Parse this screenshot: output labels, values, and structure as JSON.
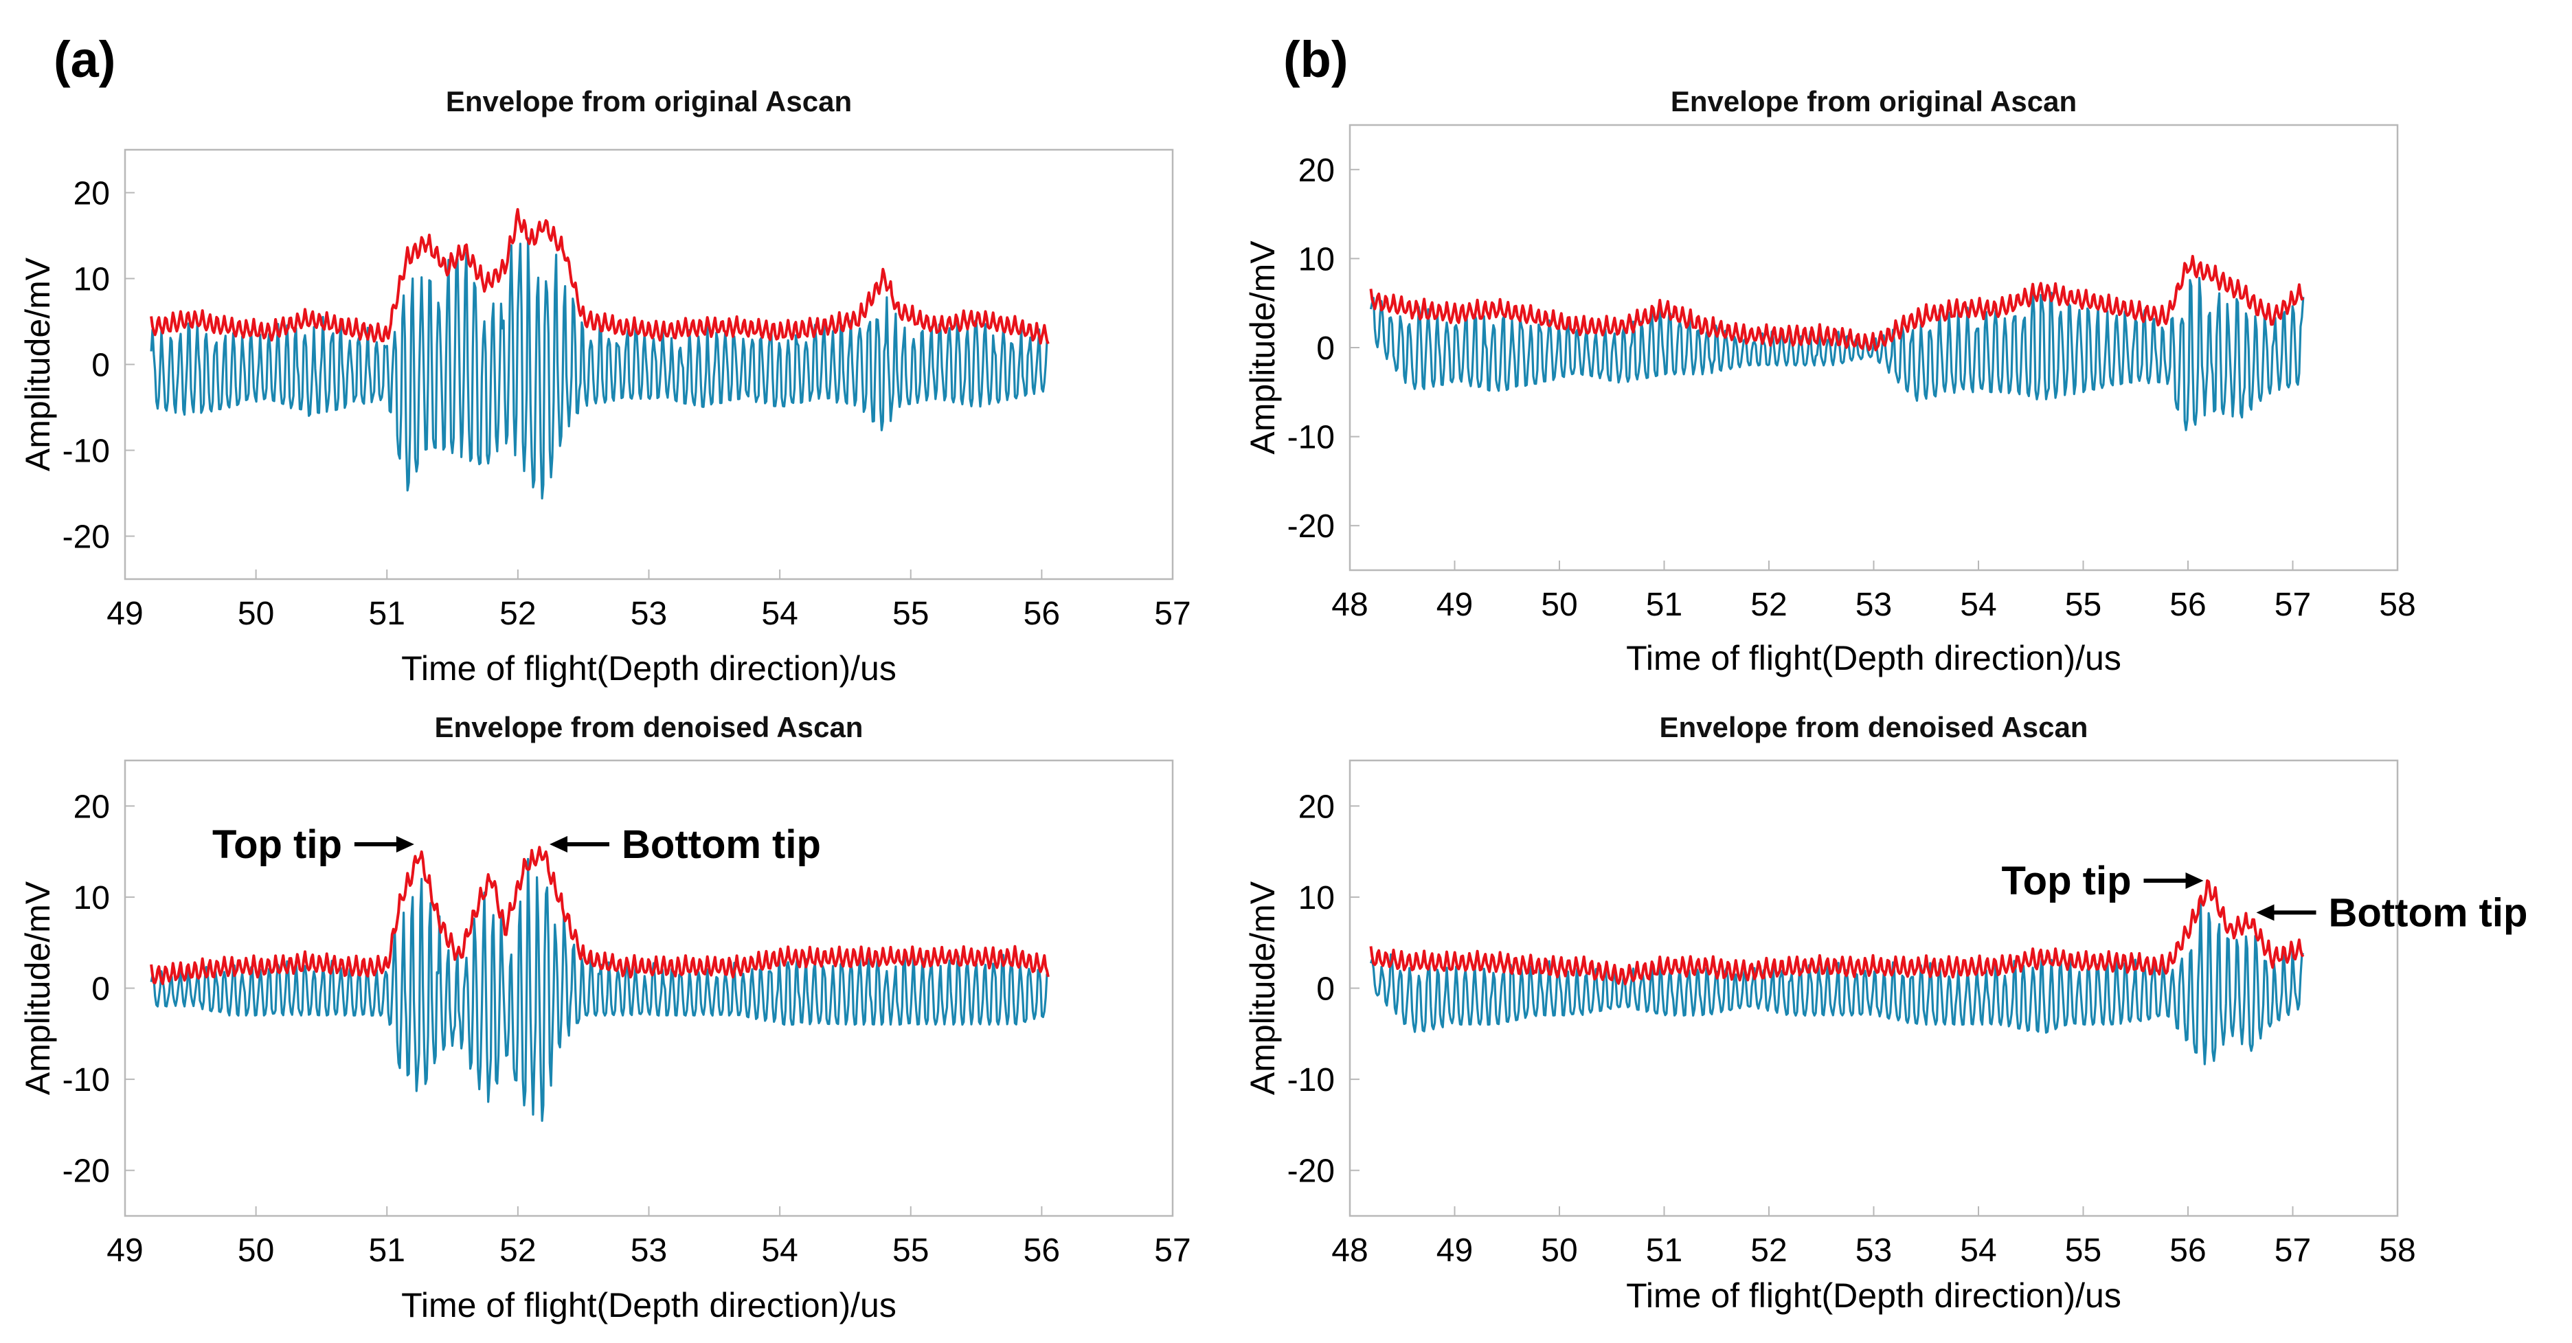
{
  "figure": {
    "panel_a_label": "(a)",
    "panel_b_label": "(b)"
  },
  "colors": {
    "envelope": "#e8121a",
    "ascan": "#1a86b0",
    "frame": "#b8b8b8",
    "annotation": "#000000"
  },
  "chart_data": [
    {
      "id": "a-original",
      "type": "line",
      "title": "Envelope from original Ascan",
      "xlabel": "Time of flight(Depth direction)/us",
      "ylabel": "Amplitude/mV",
      "xlim": [
        49,
        57
      ],
      "ylim": [
        -25,
        25
      ],
      "xticks": [
        49,
        50,
        51,
        52,
        53,
        54,
        55,
        56,
        57
      ],
      "yticks": [
        -20,
        -10,
        0,
        10,
        20
      ],
      "x_range_data": [
        49.2,
        56.05
      ],
      "series": [
        {
          "name": "Envelope",
          "role": "envelope",
          "x": [
            49.2,
            49.5,
            49.8,
            50.1,
            50.4,
            50.7,
            51.0,
            51.15,
            51.3,
            51.45,
            51.6,
            51.75,
            51.9,
            52.0,
            52.1,
            52.2,
            52.35,
            52.5,
            52.8,
            53.1,
            53.4,
            53.7,
            54.0,
            54.3,
            54.6,
            54.8,
            54.9,
            55.2,
            55.5,
            55.8,
            56.05
          ],
          "values": [
            5,
            6,
            5,
            4.5,
            6,
            5,
            4,
            13,
            15,
            12,
            14,
            10,
            12,
            18,
            15,
            17,
            14,
            6,
            5,
            4.5,
            5,
            5,
            4.5,
            5,
            6,
            11,
            7,
            5,
            6,
            5,
            4
          ]
        },
        {
          "name": "A-scan",
          "role": "signal",
          "x": [
            49.2,
            49.5,
            49.8,
            50.1,
            50.4,
            50.7,
            51.0,
            51.15,
            51.3,
            51.45,
            51.6,
            51.75,
            51.9,
            52.0,
            52.1,
            52.2,
            52.35,
            52.5,
            52.8,
            53.1,
            53.4,
            53.7,
            54.0,
            54.3,
            54.6,
            54.8,
            54.9,
            55.2,
            55.5,
            55.8,
            56.05
          ],
          "values": [
            -5,
            -6,
            -5,
            -4,
            -6,
            -5,
            -4,
            -15,
            -10,
            -10,
            -11,
            -12,
            -9,
            -11,
            -14,
            -16,
            -8,
            -5,
            -4,
            -4,
            -5,
            -4,
            -5,
            -4,
            -5,
            -8,
            -5,
            -4,
            -5,
            -4,
            -3
          ]
        }
      ],
      "annotations": []
    },
    {
      "id": "b-original",
      "type": "line",
      "title": "Envelope from original Ascan",
      "xlabel": "Time of flight(Depth direction)/us",
      "ylabel": "Amplitude/mV",
      "xlim": [
        48,
        58
      ],
      "ylim": [
        -25,
        25
      ],
      "xticks": [
        48,
        49,
        50,
        51,
        52,
        53,
        54,
        55,
        56,
        57,
        58
      ],
      "yticks": [
        -20,
        -10,
        0,
        10,
        20
      ],
      "x_range_data": [
        48.2,
        57.1
      ],
      "series": [
        {
          "name": "Envelope",
          "role": "envelope",
          "x": [
            48.2,
            48.6,
            49.0,
            49.4,
            49.8,
            50.2,
            50.6,
            51.0,
            51.4,
            51.8,
            52.2,
            52.6,
            53.0,
            53.4,
            53.8,
            54.2,
            54.6,
            55.0,
            55.4,
            55.8,
            56.0,
            56.2,
            56.5,
            56.8,
            57.1
          ],
          "values": [
            6,
            5,
            4.5,
            5,
            4,
            3,
            3,
            5,
            3,
            2,
            2,
            2,
            1,
            4,
            5,
            5,
            7,
            6,
            5,
            4,
            10,
            9,
            7,
            4,
            7
          ]
        },
        {
          "name": "A-scan",
          "role": "signal",
          "x": [
            48.2,
            48.6,
            49.0,
            49.4,
            49.8,
            50.2,
            50.6,
            51.0,
            51.4,
            51.8,
            52.2,
            52.6,
            53.0,
            53.4,
            53.8,
            54.2,
            54.6,
            55.0,
            55.4,
            55.8,
            56.0,
            56.2,
            56.5,
            56.8,
            57.1
          ],
          "values": [
            1,
            -5,
            -4,
            -5,
            -4,
            -3,
            -4,
            -3,
            -3,
            -2,
            -2,
            -2,
            -1,
            -6,
            -5,
            -5,
            -6,
            -5,
            -4,
            -4,
            -10,
            -7,
            -8,
            -5,
            -4
          ]
        }
      ],
      "annotations": []
    },
    {
      "id": "a-denoised",
      "type": "line",
      "title": "Envelope from denoised Ascan",
      "xlabel": "Time of flight(Depth direction)/us",
      "ylabel": "Amplitude/mV",
      "xlim": [
        49,
        57
      ],
      "ylim": [
        -25,
        25
      ],
      "xticks": [
        49,
        50,
        51,
        52,
        53,
        54,
        55,
        56,
        57
      ],
      "yticks": [
        -20,
        -10,
        0,
        10,
        20
      ],
      "x_range_data": [
        49.2,
        56.05
      ],
      "series": [
        {
          "name": "Envelope",
          "role": "envelope",
          "x": [
            49.2,
            49.5,
            49.8,
            50.1,
            50.4,
            50.7,
            51.0,
            51.1,
            51.25,
            51.4,
            51.55,
            51.7,
            51.8,
            51.9,
            52.05,
            52.2,
            52.3,
            52.5,
            52.8,
            53.1,
            53.4,
            53.7,
            54.0,
            54.3,
            54.6,
            54.9,
            55.2,
            55.5,
            55.8,
            56.05
          ],
          "values": [
            2,
            2.5,
            3,
            3,
            3.5,
            3,
            3,
            10,
            15.5,
            8,
            4,
            10,
            13,
            7,
            14,
            15.5,
            11,
            4,
            3,
            3,
            3,
            3,
            4,
            4,
            4,
            4,
            4,
            4,
            4,
            3
          ]
        },
        {
          "name": "A-scan",
          "role": "signal",
          "x": [
            49.2,
            49.5,
            49.8,
            50.1,
            50.4,
            50.7,
            51.0,
            51.1,
            51.25,
            51.4,
            51.55,
            51.7,
            51.8,
            51.9,
            52.05,
            52.2,
            52.3,
            52.5,
            52.8,
            53.1,
            53.4,
            53.7,
            54.0,
            54.3,
            54.6,
            54.9,
            55.2,
            55.5,
            55.8,
            56.05
          ],
          "values": [
            -2,
            -2,
            -3,
            -3,
            -3,
            -3,
            -3,
            -9,
            -12,
            -7,
            -6,
            -11,
            -13,
            -7,
            -13,
            -15,
            -7,
            -3,
            -3,
            -3,
            -3,
            -3,
            -4,
            -4,
            -4,
            -4,
            -4,
            -4,
            -4,
            -3
          ]
        }
      ],
      "annotations": [
        {
          "text": "Top tip",
          "at_x": 51.25,
          "at_y": 15.5,
          "side": "left"
        },
        {
          "text": "Bottom tip",
          "at_x": 52.2,
          "at_y": 15.5,
          "side": "right"
        }
      ]
    },
    {
      "id": "b-denoised",
      "type": "line",
      "title": "Envelope from denoised Ascan",
      "xlabel": "Time of flight(Depth direction)/us",
      "ylabel": "Amplitude/mV",
      "xlim": [
        48,
        58
      ],
      "ylim": [
        -25,
        25
      ],
      "xticks": [
        48,
        49,
        50,
        51,
        52,
        53,
        54,
        55,
        56,
        57,
        58
      ],
      "yticks": [
        -20,
        -10,
        0,
        10,
        20
      ],
      "x_range_data": [
        48.2,
        57.1
      ],
      "series": [
        {
          "name": "Envelope",
          "role": "envelope",
          "x": [
            48.2,
            48.6,
            49.0,
            49.4,
            49.8,
            50.2,
            50.6,
            51.0,
            51.4,
            51.8,
            52.2,
            52.6,
            53.0,
            53.4,
            53.8,
            54.2,
            54.6,
            55.0,
            55.4,
            55.8,
            56.0,
            56.2,
            56.4,
            56.6,
            56.8,
            57.1
          ],
          "values": [
            4,
            3.5,
            3.5,
            3.5,
            3,
            3,
            2,
            3,
            3,
            2.5,
            3,
            3,
            3,
            3,
            3,
            3,
            4,
            3.5,
            3.5,
            3,
            7,
            12,
            7,
            8,
            4,
            5
          ]
        },
        {
          "name": "A-scan",
          "role": "signal",
          "x": [
            48.2,
            48.6,
            49.0,
            49.4,
            49.8,
            50.2,
            50.6,
            51.0,
            51.4,
            51.8,
            52.2,
            52.6,
            53.0,
            53.4,
            53.8,
            54.2,
            54.6,
            55.0,
            55.4,
            55.8,
            56.0,
            56.2,
            56.4,
            56.6,
            56.8,
            57.1
          ],
          "values": [
            0,
            -5,
            -4,
            -4,
            -3,
            -3,
            -2,
            -3,
            -3,
            -2,
            -3,
            -3,
            -3,
            -4,
            -4,
            -4,
            -5,
            -4,
            -4,
            -3,
            -6,
            -9,
            -5,
            -7,
            -4,
            -2
          ]
        }
      ],
      "annotations": [
        {
          "text": "Top tip",
          "at_x": 56.2,
          "at_y": 11.5,
          "side": "left"
        },
        {
          "text": "Bottom tip",
          "at_x": 56.6,
          "at_y": 8,
          "side": "right"
        }
      ]
    }
  ]
}
